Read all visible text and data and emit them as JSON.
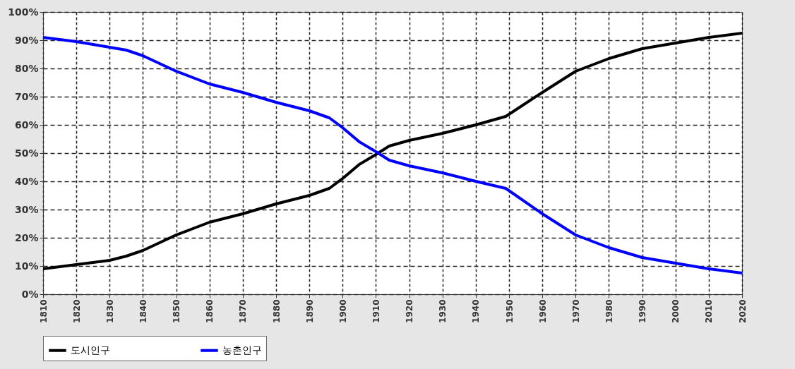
{
  "chart_data": {
    "type": "line",
    "x": [
      1810,
      1820,
      1830,
      1835,
      1840,
      1850,
      1860,
      1870,
      1880,
      1890,
      1896,
      1900,
      1905,
      1910,
      1914,
      1920,
      1930,
      1940,
      1949,
      1960,
      1970,
      1980,
      1990,
      2000,
      2010,
      2020
    ],
    "series": [
      {
        "name": "도시인구",
        "color": "#000000",
        "values": [
          9,
          10.5,
          12,
          13.5,
          15.5,
          21,
          25.5,
          28.5,
          32,
          35,
          37.5,
          41,
          46,
          49.5,
          52.5,
          54.5,
          57,
          60,
          63,
          71.5,
          79,
          83.5,
          87,
          89,
          91,
          92.5
        ]
      },
      {
        "name": "농촌인구",
        "color": "#0000ff",
        "values": [
          91,
          89.5,
          87.5,
          86.5,
          84.5,
          79,
          74.5,
          71.5,
          68,
          65,
          62.5,
          59,
          54,
          50.5,
          47.5,
          45.5,
          43,
          40,
          37.5,
          28.5,
          21,
          16.5,
          13,
          11,
          9,
          7.5
        ]
      }
    ],
    "xlim": [
      1810,
      2020
    ],
    "xticks": [
      1810,
      1820,
      1830,
      1840,
      1850,
      1860,
      1870,
      1880,
      1890,
      1900,
      1910,
      1920,
      1930,
      1940,
      1950,
      1960,
      1970,
      1980,
      1990,
      2000,
      2010,
      2020
    ],
    "ylim": [
      0,
      100
    ],
    "yticks": [
      {
        "value": 0,
        "label": "0%"
      },
      {
        "value": 10,
        "label": "10%"
      },
      {
        "value": 20,
        "label": "20%"
      },
      {
        "value": 30,
        "label": "30%"
      },
      {
        "value": 40,
        "label": "40%"
      },
      {
        "value": 50,
        "label": "50%"
      },
      {
        "value": 60,
        "label": "60%"
      },
      {
        "value": 70,
        "label": "70%"
      },
      {
        "value": 80,
        "label": "80%"
      },
      {
        "value": 90,
        "label": "90%"
      },
      {
        "value": 100,
        "label": "100%"
      }
    ],
    "grid": true,
    "legend": "bottom",
    "line_style": "solid",
    "marker": "none"
  }
}
